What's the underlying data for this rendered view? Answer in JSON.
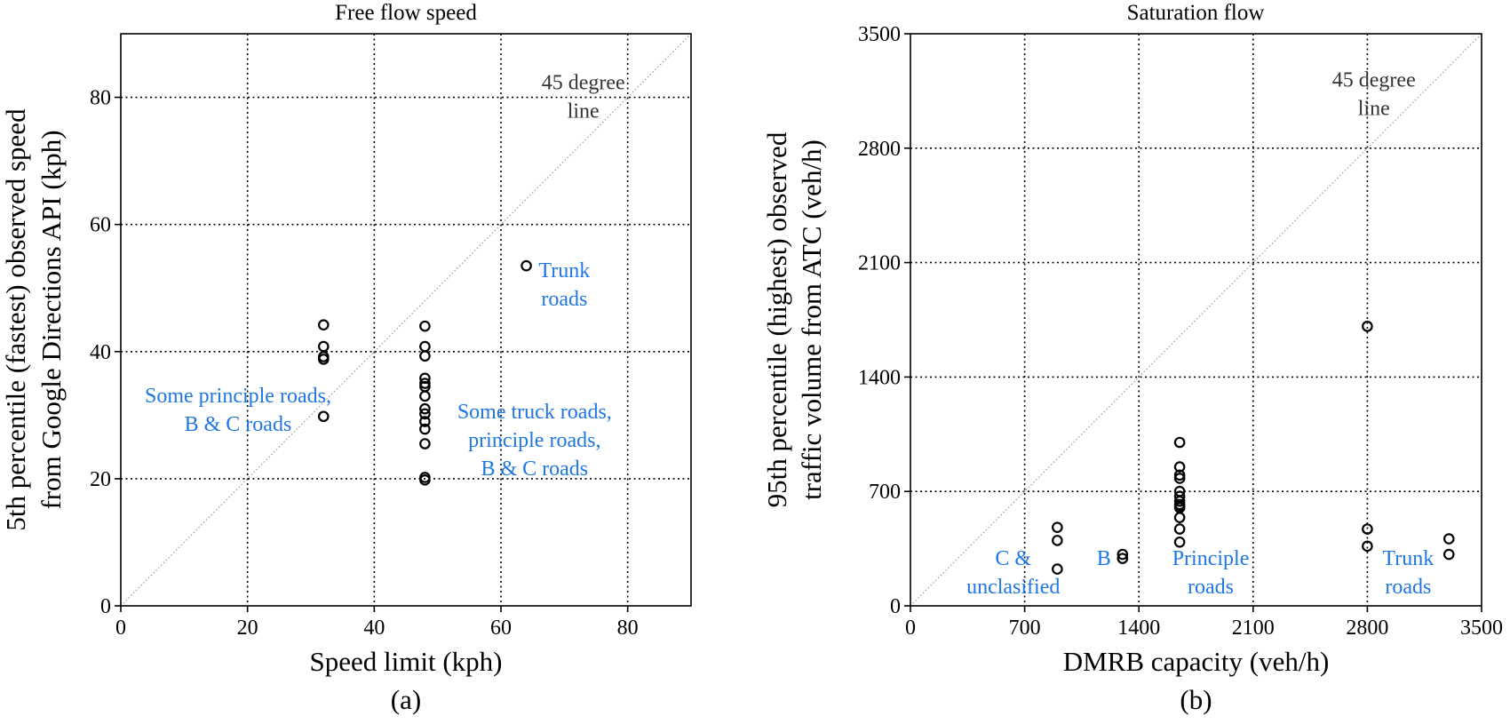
{
  "chart_data": [
    {
      "type": "scatter",
      "title": "Free flow speed",
      "xlabel": "Speed limit (kph)",
      "ylabel": [
        "5th percentile (fastest) observed speed",
        "from Google Directions API (kph)"
      ],
      "sublabel": "(a)",
      "xlim": [
        0,
        90
      ],
      "ylim": [
        0,
        90
      ],
      "xticks": [
        0,
        20,
        40,
        60,
        80
      ],
      "yticks": [
        0,
        20,
        40,
        60,
        80
      ],
      "grid": true,
      "reference_line": "45-degree",
      "series": [
        {
          "marker": "open-circle",
          "points": [
            [
              32,
              44.2
            ],
            [
              32,
              40.8
            ],
            [
              32,
              39.2
            ],
            [
              32,
              38.8
            ],
            [
              32,
              29.8
            ],
            [
              48,
              44
            ],
            [
              48,
              40.8
            ],
            [
              48,
              39.3
            ],
            [
              48,
              35.8
            ],
            [
              48,
              35
            ],
            [
              48,
              34.5
            ],
            [
              48,
              33
            ],
            [
              48,
              31
            ],
            [
              48,
              30.2
            ],
            [
              48,
              29
            ],
            [
              48,
              27.8
            ],
            [
              48,
              25.5
            ],
            [
              48,
              20.2
            ],
            [
              48,
              19.8
            ],
            [
              64,
              53.5
            ]
          ]
        }
      ],
      "annotations": [
        {
          "lines": [
            "45 degree",
            "line"
          ],
          "x": 73,
          "y": 81.3,
          "color": "#333333"
        },
        {
          "lines": [
            "Trunk",
            "roads"
          ],
          "x": 70,
          "y": 51.7,
          "color": "#1f77e4"
        },
        {
          "lines": [
            "Some principle roads,",
            "B & C roads"
          ],
          "x": 18.5,
          "y": 32,
          "color": "#1f77e4"
        },
        {
          "lines": [
            "Some truck roads,",
            "principle roads,",
            "B & C roads"
          ],
          "x": 65.3,
          "y": 29.5,
          "color": "#1f77e4"
        }
      ]
    },
    {
      "type": "scatter",
      "title": "Saturation flow",
      "xlabel": "DMRB capacity (veh/h)",
      "ylabel": [
        "95th percentile (highest) observed",
        "traffic volume from ATC (veh/h)"
      ],
      "sublabel": "(b)",
      "xlim": [
        0,
        3500
      ],
      "ylim": [
        0,
        3500
      ],
      "xticks": [
        0,
        700,
        1400,
        2100,
        2800,
        3500
      ],
      "yticks": [
        0,
        700,
        1400,
        2100,
        2800,
        3500
      ],
      "grid": true,
      "reference_line": "45-degree",
      "series": [
        {
          "marker": "open-circle",
          "points": [
            [
              900,
              480
            ],
            [
              900,
              400
            ],
            [
              900,
              225
            ],
            [
              1300,
              315
            ],
            [
              1300,
              290
            ],
            [
              1650,
              1000
            ],
            [
              1650,
              850
            ],
            [
              1650,
              800
            ],
            [
              1650,
              780
            ],
            [
              1650,
              700
            ],
            [
              1650,
              670
            ],
            [
              1650,
              640
            ],
            [
              1650,
              620
            ],
            [
              1650,
              610
            ],
            [
              1650,
              600
            ],
            [
              1650,
              540
            ],
            [
              1650,
              470
            ],
            [
              1650,
              390
            ],
            [
              2800,
              1710
            ],
            [
              2800,
              470
            ],
            [
              2800,
              365
            ],
            [
              3300,
              410
            ],
            [
              3300,
              315
            ]
          ]
        }
      ],
      "annotations": [
        {
          "lines": [
            "45 degree",
            "line"
          ],
          "x": 2840,
          "y": 3177,
          "color": "#333333"
        },
        {
          "lines": [
            "C &",
            "unclasified"
          ],
          "x": 630,
          "y": 251,
          "color": "#1f77e4"
        },
        {
          "lines": [
            "B"
          ],
          "x": 1185,
          "y": 251,
          "color": "#1f77e4"
        },
        {
          "lines": [
            "Principle",
            "roads"
          ],
          "x": 1840,
          "y": 251,
          "color": "#1f77e4"
        },
        {
          "lines": [
            "Trunk",
            "roads"
          ],
          "x": 3050,
          "y": 251,
          "color": "#1f77e4"
        }
      ]
    }
  ]
}
